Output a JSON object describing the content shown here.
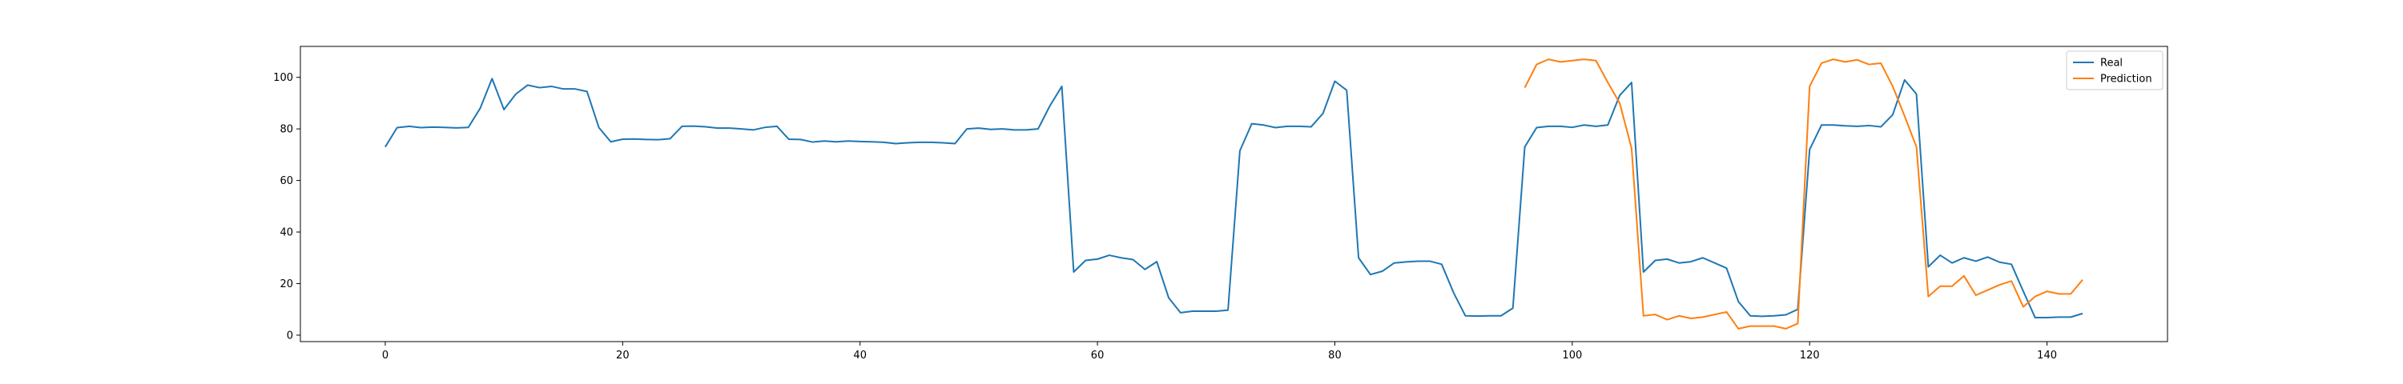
{
  "chart_data": {
    "type": "line",
    "title": "",
    "xlabel": "",
    "ylabel": "",
    "xlim": [
      -7.15,
      150.15
    ],
    "ylim": [
      -2.5,
      112
    ],
    "xticks": [
      0,
      20,
      40,
      60,
      80,
      100,
      120,
      140
    ],
    "yticks": [
      0,
      20,
      40,
      60,
      80,
      100
    ],
    "grid": false,
    "legend_position": "top-right",
    "series": [
      {
        "name": "Real",
        "color": "#1f77b4",
        "x_start": 0,
        "values": [
          73,
          80.5,
          81,
          80.5,
          80.7,
          80.6,
          80.4,
          80.6,
          88,
          99.5,
          87.5,
          93.5,
          97,
          96,
          96.5,
          95.5,
          95.5,
          94.5,
          80.5,
          75,
          76,
          76.1,
          75.9,
          75.8,
          76.2,
          81,
          81.1,
          80.8,
          80.3,
          80.3,
          80,
          79.6,
          80.6,
          81,
          76,
          75.9,
          74.9,
          75.3,
          75,
          75.3,
          75.1,
          75,
          74.8,
          74.3,
          74.6,
          74.8,
          74.8,
          74.6,
          74.3,
          80,
          80.3,
          79.8,
          80,
          79.6,
          79.6,
          80,
          89,
          96.5,
          24.5,
          29,
          29.5,
          31,
          30,
          29.3,
          25.5,
          28.5,
          14.5,
          8.7,
          9.3,
          9.3,
          9.3,
          9.7,
          71.5,
          82,
          81.5,
          80.5,
          81,
          81,
          80.8,
          86,
          98.5,
          95,
          30,
          23.5,
          24.8,
          28,
          28.4,
          28.7,
          28.7,
          27.5,
          16.5,
          7.5,
          7.4,
          7.5,
          7.5,
          10.5,
          73,
          80.5,
          81,
          81,
          80.6,
          81.5,
          81,
          81.5,
          93,
          98,
          24.5,
          29,
          29.5,
          28,
          28.5,
          30,
          28,
          26,
          13,
          7.5,
          7.3,
          7.5,
          7.9,
          10,
          72,
          81.5,
          81.5,
          81.2,
          81,
          81.3,
          80.8,
          85.5,
          99,
          93.5,
          26.5,
          31,
          28,
          30,
          28.7,
          30.3,
          28.3,
          27.5,
          17,
          6.8,
          6.8,
          7,
          7,
          8.4
        ]
      },
      {
        "name": "Prediction",
        "color": "#ff7f0e",
        "x_start": 96,
        "values": [
          96,
          105,
          107,
          106,
          106.5,
          107,
          106.5,
          98,
          90,
          72.5,
          7.5,
          8,
          6,
          7.5,
          6.5,
          7,
          8,
          9,
          2.5,
          3.5,
          3.5,
          3.5,
          2.5,
          4.5,
          96.5,
          105.5,
          107,
          106,
          106.8,
          105,
          105.5,
          96.5,
          85,
          73,
          15,
          19,
          19,
          23,
          15.5,
          17.5,
          19.5,
          21,
          11,
          15,
          17,
          16,
          16,
          21.5
        ]
      }
    ]
  }
}
